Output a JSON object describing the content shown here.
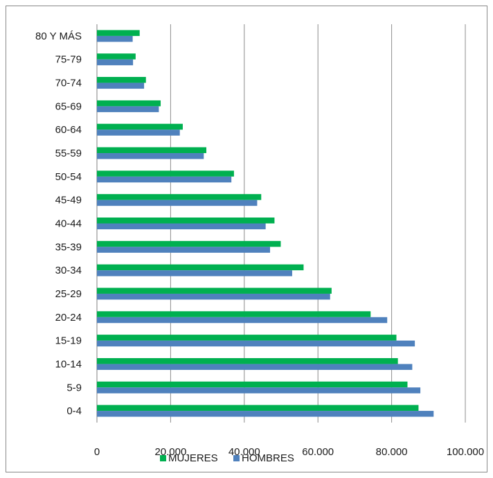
{
  "chart_data": {
    "type": "bar",
    "orientation": "horizontal",
    "categories": [
      "0-4",
      "5-9",
      "10-14",
      "15-19",
      "20-24",
      "25-29",
      "30-34",
      "35-39",
      "40-44",
      "45-49",
      "50-54",
      "55-59",
      "60-64",
      "65-69",
      "70-74",
      "75-79",
      "80 Y MÁS"
    ],
    "series": [
      {
        "name": "MUJERES",
        "color": "#00b050",
        "values": [
          87300,
          84300,
          81700,
          81300,
          74300,
          63700,
          56100,
          49900,
          48200,
          44600,
          37200,
          29700,
          23300,
          17300,
          13300,
          10500,
          11600
        ]
      },
      {
        "name": "HOMBRES",
        "color": "#4f81bd",
        "values": [
          91400,
          87800,
          85600,
          86300,
          78800,
          63300,
          53000,
          47000,
          45800,
          43500,
          36500,
          29000,
          22500,
          16800,
          12800,
          9800,
          9700
        ]
      }
    ],
    "xlim": [
      0,
      100000
    ],
    "xticks": [
      0,
      20000,
      40000,
      60000,
      80000,
      100000
    ],
    "xtick_labels": [
      "0",
      "20.000",
      "40.000",
      "60.000",
      "80.000",
      "100.000"
    ],
    "grid": "vertical",
    "legend": "bottom"
  }
}
